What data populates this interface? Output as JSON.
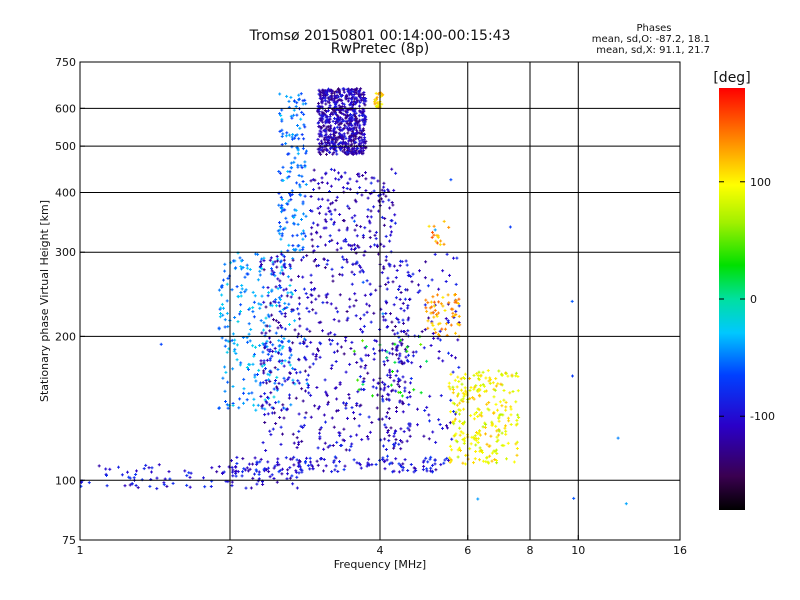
{
  "chart_data": {
    "type": "scatter",
    "title": "Tromsø 20150801 00:14:00-00:15:43",
    "subtitle": "RwPretec (8p)",
    "stats": {
      "header": "Phases",
      "o_line": "mean, sd,O: -87.2, 18.1",
      "x_line": "mean, sd,X:  91.1, 21.7"
    },
    "xlabel": "Frequency [MHz]",
    "ylabel": "Stationary phase Virtual Height [km]",
    "x_scale": "log",
    "y_scale": "log",
    "xlim": [
      1,
      16
    ],
    "ylim": [
      75,
      750
    ],
    "x_ticks": [
      1,
      2,
      4,
      6,
      8,
      10,
      16
    ],
    "x_tick_labels": [
      "1",
      "2",
      "4",
      "6",
      "8",
      "10",
      "16"
    ],
    "y_ticks": [
      75,
      100,
      200,
      300,
      400,
      500,
      600,
      750
    ],
    "y_tick_labels": [
      "75",
      "100",
      "200",
      "300",
      "400",
      "500",
      "600",
      "750"
    ],
    "grid": true,
    "colorbar": {
      "label": "[deg]",
      "range": [
        -180,
        180
      ],
      "ticks": [
        -100,
        0,
        100
      ],
      "tick_labels": [
        "-100",
        "0",
        "100"
      ]
    },
    "clusters": [
      {
        "desc": "O-trace low",
        "f": [
          1.0,
          2.8
        ],
        "h": [
          96,
          108
        ],
        "phase": -100,
        "n": 110
      },
      {
        "desc": "O-trace base",
        "f": [
          2.0,
          5.5
        ],
        "h": [
          104,
          112
        ],
        "phase": -100,
        "n": 140
      },
      {
        "desc": "E/F rising column",
        "f": [
          1.9,
          2.7
        ],
        "h": [
          140,
          300
        ],
        "phase": -45,
        "n": 260
      },
      {
        "desc": "wall",
        "f": [
          2.5,
          2.85
        ],
        "h": [
          300,
          650
        ],
        "phase": -55,
        "n": 160
      },
      {
        "desc": "F2 dense cusp",
        "f": [
          3.0,
          3.75
        ],
        "h": [
          480,
          660
        ],
        "phase": -115,
        "n": 700
      },
      {
        "desc": "F echoes",
        "f": [
          2.9,
          4.3
        ],
        "h": [
          300,
          450
        ],
        "phase": -110,
        "n": 180
      },
      {
        "desc": "mid scatter",
        "f": [
          2.3,
          4.6
        ],
        "h": [
          115,
          300
        ],
        "phase": -110,
        "n": 550
      },
      {
        "desc": "upper scatter",
        "f": [
          4.0,
          5.8
        ],
        "h": [
          120,
          300
        ],
        "phase": -105,
        "n": 160
      },
      {
        "desc": "X-trace high",
        "f": [
          5.5,
          7.6
        ],
        "h": [
          108,
          170
        ],
        "phase": 95,
        "n": 260
      },
      {
        "desc": "X-trace arc",
        "f": [
          4.9,
          5.8
        ],
        "h": [
          200,
          245
        ],
        "phase": 125,
        "n": 60
      },
      {
        "desc": "X top",
        "f": [
          3.9,
          4.05
        ],
        "h": [
          600,
          650
        ],
        "phase": 110,
        "n": 25
      },
      {
        "desc": "X mid",
        "f": [
          5.0,
          5.5
        ],
        "h": [
          310,
          350
        ],
        "phase": 130,
        "n": 15
      },
      {
        "desc": "scattered green",
        "f": [
          3.5,
          5.0
        ],
        "h": [
          150,
          200
        ],
        "phase": 30,
        "n": 25
      },
      {
        "desc": "isolated outliers",
        "f": [
          1.3,
          12.5
        ],
        "h": [
          85,
          470
        ],
        "phase": -60,
        "n": 20
      }
    ]
  }
}
